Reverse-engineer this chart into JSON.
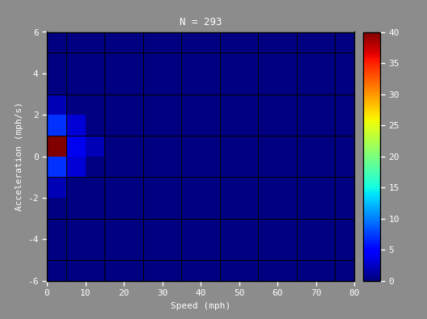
{
  "title": "N = 293",
  "xlabel": "Speed (mph)",
  "ylabel": "Acceleration (mph/s)",
  "xlim": [
    0,
    80
  ],
  "ylim": [
    -6,
    6
  ],
  "xticks": [
    0,
    10,
    20,
    30,
    40,
    50,
    60,
    70,
    80
  ],
  "yticks": [
    -6,
    -4,
    -2,
    0,
    2,
    4,
    6
  ],
  "colorbar_ticks": [
    0,
    5,
    10,
    15,
    20,
    25,
    30,
    35,
    40
  ],
  "vmin": 0,
  "vmax": 40,
  "background_color": "#8c8c8c",
  "grid_color": "#000000",
  "speed_bin_size": 5,
  "accel_bin_size": 1,
  "hot_cell": {
    "speed_bin": 0,
    "accel_bin": 0,
    "value": 40
  },
  "warm_cells": [
    {
      "speed_bin": 0,
      "accel_bin": 1,
      "value": 7
    },
    {
      "speed_bin": 0,
      "accel_bin": -1,
      "value": 7
    },
    {
      "speed_bin": 1,
      "accel_bin": 0,
      "value": 4
    },
    {
      "speed_bin": 1,
      "accel_bin": 1,
      "value": 3
    },
    {
      "speed_bin": 1,
      "accel_bin": -1,
      "value": 3
    },
    {
      "speed_bin": 0,
      "accel_bin": 2,
      "value": 2
    },
    {
      "speed_bin": 0,
      "accel_bin": -2,
      "value": 2
    },
    {
      "speed_bin": 2,
      "accel_bin": 0,
      "value": 2
    }
  ],
  "title_fontsize": 9,
  "label_fontsize": 8,
  "tick_fontsize": 8,
  "colorbar_fontsize": 8
}
